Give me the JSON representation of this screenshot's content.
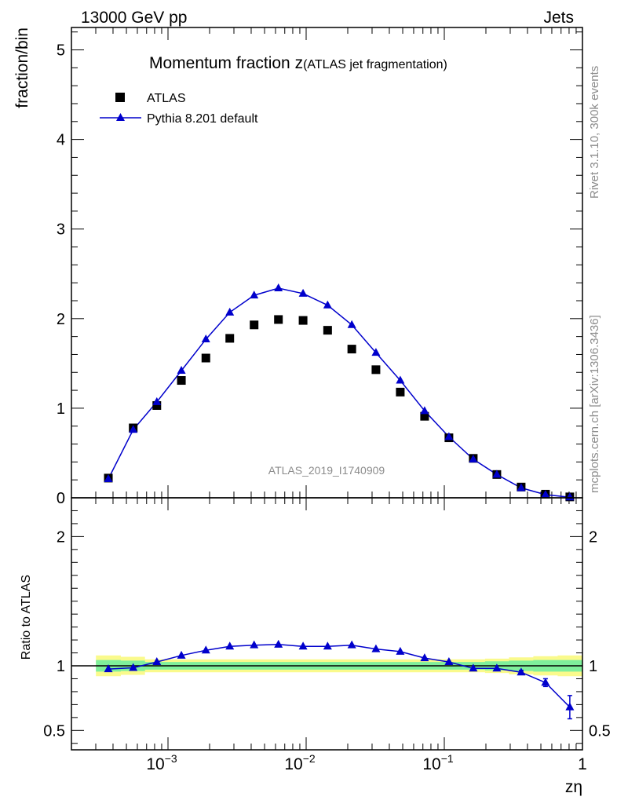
{
  "header": {
    "left": "13000 GeV pp",
    "right": "Jets"
  },
  "side_labels": {
    "rivet": "Rivet 3.1.10,  300k events",
    "mcplots": "mcplots.cern.ch [arXiv:1306.3436]"
  },
  "chart_data": {
    "type": "scatter",
    "title_main": "Momentum fraction z",
    "title_sub": "(ATLAS jet fragmentation)",
    "watermark": "ATLAS_2019_I1740909",
    "ylabel": "fraction/bin",
    "ratio_ylabel": "Ratio to ATLAS",
    "xlabel": "zη",
    "xscale": "log",
    "xlim": [
      0.0002,
      1
    ],
    "ylim": [
      0,
      5.25
    ],
    "ratio_ylim": [
      0.35,
      2.3
    ],
    "x_ticks": [
      {
        "base": "10",
        "exp": "−3",
        "value": 0.001
      },
      {
        "base": "10",
        "exp": "−2",
        "value": 0.01
      },
      {
        "base": "10",
        "exp": "−1",
        "value": 0.1
      },
      {
        "base": "1",
        "exp": "",
        "value": 1
      }
    ],
    "y_ticks": [
      "0",
      "1",
      "2",
      "3",
      "4",
      "5"
    ],
    "ratio_ticks": [
      "0.5",
      "1",
      "2"
    ],
    "legend": {
      "position": "top-left",
      "data_label": "ATLAS",
      "mc_label": "Pythia 8.201 default"
    },
    "colors": {
      "data": "#000000",
      "mc": "#0000cc",
      "band_inner": "#7ff09b",
      "band_outer": "#fafa8c"
    },
    "x": [
      0.00037,
      0.00056,
      0.00083,
      0.00125,
      0.00188,
      0.0028,
      0.0042,
      0.0063,
      0.0095,
      0.0143,
      0.0214,
      0.032,
      0.048,
      0.072,
      0.108,
      0.162,
      0.24,
      0.36,
      0.54,
      0.81
    ],
    "series": [
      {
        "name": "ATLAS",
        "values": [
          0.22,
          0.78,
          1.03,
          1.31,
          1.56,
          1.78,
          1.93,
          1.99,
          1.98,
          1.87,
          1.66,
          1.43,
          1.18,
          0.91,
          0.67,
          0.44,
          0.26,
          0.12,
          0.04,
          0.01
        ],
        "band_inner": [
          0.045,
          0.04,
          0.03,
          0.03,
          0.03,
          0.03,
          0.03,
          0.03,
          0.03,
          0.03,
          0.03,
          0.03,
          0.03,
          0.03,
          0.03,
          0.03,
          0.035,
          0.04,
          0.045,
          0.045
        ],
        "band_outer": [
          0.08,
          0.07,
          0.05,
          0.05,
          0.05,
          0.05,
          0.05,
          0.05,
          0.05,
          0.05,
          0.05,
          0.05,
          0.05,
          0.05,
          0.05,
          0.05,
          0.055,
          0.065,
          0.075,
          0.08
        ]
      },
      {
        "name": "Pythia 8.201 default",
        "values": [
          0.21,
          0.76,
          1.07,
          1.42,
          1.77,
          2.07,
          2.26,
          2.34,
          2.28,
          2.15,
          1.93,
          1.62,
          1.31,
          0.97,
          0.68,
          0.43,
          0.26,
          0.11,
          0.035,
          0.007
        ],
        "ratio": [
          0.975,
          0.985,
          1.03,
          1.08,
          1.12,
          1.15,
          1.16,
          1.165,
          1.15,
          1.15,
          1.16,
          1.13,
          1.11,
          1.06,
          1.03,
          0.98,
          0.98,
          0.95,
          0.87,
          0.68
        ],
        "ratio_err": [
          0,
          0,
          0,
          0,
          0,
          0,
          0,
          0,
          0,
          0,
          0,
          0,
          0,
          0,
          0,
          0,
          0,
          0.015,
          0.03,
          0.09
        ]
      }
    ]
  }
}
